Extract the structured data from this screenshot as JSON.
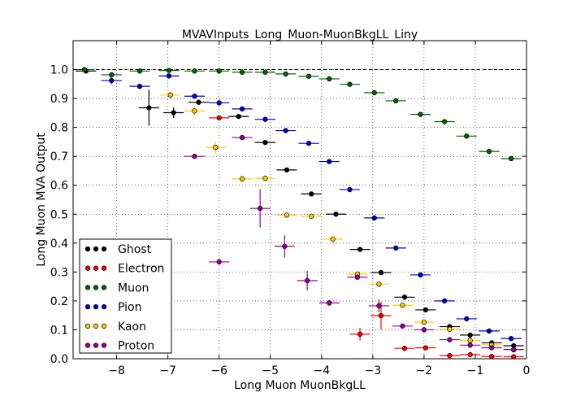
{
  "chart_data": {
    "type": "scatter",
    "title": "MVAVInputs_Long_Muon-MuonBkgLL_Liny",
    "xlabel": "Long Muon MuonBkgLL",
    "ylabel": "Long Muon MVA Output",
    "xlim": [
      -8.85,
      0
    ],
    "ylim": [
      0.0,
      1.1
    ],
    "xticks": [
      -8,
      -7,
      -6,
      -5,
      -4,
      -3,
      -2,
      -1,
      0
    ],
    "xtick_labels": [
      "−8",
      "−7",
      "−6",
      "−5",
      "−4",
      "−3",
      "−2",
      "−1",
      "0"
    ],
    "yticks": [
      0.0,
      0.1,
      0.2,
      0.3,
      0.4,
      0.5,
      0.6,
      0.7,
      0.8,
      0.9,
      1.0
    ],
    "ytick_labels": [
      "0.0",
      "0.1",
      "0.2",
      "0.3",
      "0.4",
      "0.5",
      "0.6",
      "0.7",
      "0.8",
      "0.9",
      "1.0"
    ],
    "grid": true,
    "reference_line": 1.0,
    "legend_position": "lower-left",
    "series": [
      {
        "name": "Ghost",
        "color": "#000000",
        "points": [
          {
            "x": -8.6,
            "y": 0.995,
            "xerr": 0.2,
            "yerr": 0.003
          },
          {
            "x": -7.37,
            "y": 0.868,
            "xerr": 0.2,
            "yerr": 0.062
          },
          {
            "x": -6.89,
            "y": 0.851,
            "xerr": 0.2,
            "yerr": 0.018
          },
          {
            "x": -6.4,
            "y": 0.887,
            "xerr": 0.2,
            "yerr": 0.008
          },
          {
            "x": -5.62,
            "y": 0.838,
            "xerr": 0.2,
            "yerr": 0.006
          },
          {
            "x": -5.1,
            "y": 0.748,
            "xerr": 0.2,
            "yerr": 0.005
          },
          {
            "x": -4.68,
            "y": 0.653,
            "xerr": 0.2,
            "yerr": 0.005
          },
          {
            "x": -4.2,
            "y": 0.57,
            "xerr": 0.2,
            "yerr": 0.004
          },
          {
            "x": -3.72,
            "y": 0.5,
            "xerr": 0.2,
            "yerr": 0.004
          },
          {
            "x": -3.25,
            "y": 0.378,
            "xerr": 0.2,
            "yerr": 0.004
          },
          {
            "x": -2.84,
            "y": 0.298,
            "xerr": 0.2,
            "yerr": 0.004
          },
          {
            "x": -2.38,
            "y": 0.213,
            "xerr": 0.2,
            "yerr": 0.004
          },
          {
            "x": -1.97,
            "y": 0.169,
            "xerr": 0.2,
            "yerr": 0.004
          },
          {
            "x": -1.5,
            "y": 0.111,
            "xerr": 0.2,
            "yerr": 0.004
          },
          {
            "x": -1.1,
            "y": 0.082,
            "xerr": 0.2,
            "yerr": 0.004
          },
          {
            "x": -0.68,
            "y": 0.055,
            "xerr": 0.2,
            "yerr": 0.004
          },
          {
            "x": -0.25,
            "y": 0.045,
            "xerr": 0.2,
            "yerr": 0.004
          }
        ]
      },
      {
        "name": "Electron",
        "color": "#ff0000",
        "points": [
          {
            "x": -6.0,
            "y": 0.833,
            "xerr": 0.2,
            "yerr": 0.005
          },
          {
            "x": -3.25,
            "y": 0.085,
            "xerr": 0.2,
            "yerr": 0.022
          },
          {
            "x": -2.84,
            "y": 0.149,
            "xerr": 0.2,
            "yerr": 0.048
          },
          {
            "x": -2.38,
            "y": 0.036,
            "xerr": 0.2,
            "yerr": 0.008
          },
          {
            "x": -1.97,
            "y": 0.038,
            "xerr": 0.2,
            "yerr": 0.006
          },
          {
            "x": -1.5,
            "y": 0.011,
            "xerr": 0.2,
            "yerr": 0.004
          },
          {
            "x": -1.1,
            "y": 0.014,
            "xerr": 0.2,
            "yerr": 0.004
          },
          {
            "x": -0.68,
            "y": 0.008,
            "xerr": 0.2,
            "yerr": 0.003
          },
          {
            "x": -0.25,
            "y": 0.007,
            "xerr": 0.2,
            "yerr": 0.003
          }
        ]
      },
      {
        "name": "Muon",
        "color": "#006400",
        "points": [
          {
            "x": -8.63,
            "y": 1.0,
            "xerr": 0.2,
            "yerr": 0.001
          },
          {
            "x": -8.1,
            "y": 0.982,
            "xerr": 0.2,
            "yerr": 0.002
          },
          {
            "x": -7.55,
            "y": 0.995,
            "xerr": 0.2,
            "yerr": 0.002
          },
          {
            "x": -6.98,
            "y": 0.997,
            "xerr": 0.2,
            "yerr": 0.002
          },
          {
            "x": -6.48,
            "y": 0.995,
            "xerr": 0.2,
            "yerr": 0.002
          },
          {
            "x": -6.0,
            "y": 0.995,
            "xerr": 0.2,
            "yerr": 0.002
          },
          {
            "x": -5.55,
            "y": 0.991,
            "xerr": 0.2,
            "yerr": 0.002
          },
          {
            "x": -5.1,
            "y": 0.991,
            "xerr": 0.2,
            "yerr": 0.002
          },
          {
            "x": -4.7,
            "y": 0.985,
            "xerr": 0.2,
            "yerr": 0.002
          },
          {
            "x": -4.25,
            "y": 0.977,
            "xerr": 0.2,
            "yerr": 0.002
          },
          {
            "x": -3.85,
            "y": 0.968,
            "xerr": 0.2,
            "yerr": 0.002
          },
          {
            "x": -3.45,
            "y": 0.949,
            "xerr": 0.2,
            "yerr": 0.002
          },
          {
            "x": -2.97,
            "y": 0.92,
            "xerr": 0.2,
            "yerr": 0.002
          },
          {
            "x": -2.55,
            "y": 0.892,
            "xerr": 0.2,
            "yerr": 0.002
          },
          {
            "x": -2.07,
            "y": 0.845,
            "xerr": 0.2,
            "yerr": 0.002
          },
          {
            "x": -1.6,
            "y": 0.82,
            "xerr": 0.2,
            "yerr": 0.002
          },
          {
            "x": -1.17,
            "y": 0.77,
            "xerr": 0.2,
            "yerr": 0.002
          },
          {
            "x": -0.73,
            "y": 0.717,
            "xerr": 0.2,
            "yerr": 0.002
          },
          {
            "x": -0.3,
            "y": 0.692,
            "xerr": 0.2,
            "yerr": 0.002
          }
        ]
      },
      {
        "name": "Pion",
        "color": "#0000cc",
        "points": [
          {
            "x": -8.1,
            "y": 0.962,
            "xerr": 0.2,
            "yerr": 0.012
          },
          {
            "x": -7.55,
            "y": 0.942,
            "xerr": 0.2,
            "yerr": 0.006
          },
          {
            "x": -6.98,
            "y": 0.978,
            "xerr": 0.2,
            "yerr": 0.004
          },
          {
            "x": -6.48,
            "y": 0.908,
            "xerr": 0.2,
            "yerr": 0.004
          },
          {
            "x": -6.0,
            "y": 0.885,
            "xerr": 0.2,
            "yerr": 0.004
          },
          {
            "x": -5.55,
            "y": 0.864,
            "xerr": 0.2,
            "yerr": 0.004
          },
          {
            "x": -5.1,
            "y": 0.828,
            "xerr": 0.2,
            "yerr": 0.004
          },
          {
            "x": -4.7,
            "y": 0.789,
            "xerr": 0.2,
            "yerr": 0.004
          },
          {
            "x": -4.25,
            "y": 0.745,
            "xerr": 0.2,
            "yerr": 0.004
          },
          {
            "x": -3.85,
            "y": 0.682,
            "xerr": 0.2,
            "yerr": 0.004
          },
          {
            "x": -3.45,
            "y": 0.585,
            "xerr": 0.2,
            "yerr": 0.004
          },
          {
            "x": -2.97,
            "y": 0.487,
            "xerr": 0.2,
            "yerr": 0.004
          },
          {
            "x": -2.55,
            "y": 0.383,
            "xerr": 0.2,
            "yerr": 0.004
          },
          {
            "x": -2.07,
            "y": 0.29,
            "xerr": 0.2,
            "yerr": 0.004
          },
          {
            "x": -1.6,
            "y": 0.2,
            "xerr": 0.2,
            "yerr": 0.004
          },
          {
            "x": -1.17,
            "y": 0.138,
            "xerr": 0.2,
            "yerr": 0.004
          },
          {
            "x": -0.73,
            "y": 0.096,
            "xerr": 0.2,
            "yerr": 0.004
          },
          {
            "x": -0.3,
            "y": 0.07,
            "xerr": 0.2,
            "yerr": 0.004
          }
        ]
      },
      {
        "name": "Kaon",
        "color": "#ffcc00",
        "points": [
          {
            "x": -6.95,
            "y": 0.912,
            "xerr": 0.2,
            "yerr": 0.012
          },
          {
            "x": -6.48,
            "y": 0.857,
            "xerr": 0.2,
            "yerr": 0.018
          },
          {
            "x": -6.07,
            "y": 0.731,
            "xerr": 0.2,
            "yerr": 0.02
          },
          {
            "x": -5.55,
            "y": 0.622,
            "xerr": 0.2,
            "yerr": 0.012
          },
          {
            "x": -5.1,
            "y": 0.624,
            "xerr": 0.2,
            "yerr": 0.01
          },
          {
            "x": -4.68,
            "y": 0.497,
            "xerr": 0.2,
            "yerr": 0.006
          },
          {
            "x": -4.2,
            "y": 0.493,
            "xerr": 0.2,
            "yerr": 0.005
          },
          {
            "x": -3.78,
            "y": 0.414,
            "xerr": 0.2,
            "yerr": 0.005
          },
          {
            "x": -3.3,
            "y": 0.293,
            "xerr": 0.2,
            "yerr": 0.005
          },
          {
            "x": -2.88,
            "y": 0.258,
            "xerr": 0.2,
            "yerr": 0.005
          },
          {
            "x": -2.42,
            "y": 0.185,
            "xerr": 0.2,
            "yerr": 0.005
          },
          {
            "x": -2.0,
            "y": 0.127,
            "xerr": 0.2,
            "yerr": 0.005
          },
          {
            "x": -1.5,
            "y": 0.102,
            "xerr": 0.2,
            "yerr": 0.005
          },
          {
            "x": -1.1,
            "y": 0.063,
            "xerr": 0.2,
            "yerr": 0.005
          },
          {
            "x": -0.68,
            "y": 0.048,
            "xerr": 0.2,
            "yerr": 0.004
          },
          {
            "x": -0.25,
            "y": 0.031,
            "xerr": 0.2,
            "yerr": 0.004
          }
        ]
      },
      {
        "name": "Proton",
        "color": "#990099",
        "points": [
          {
            "x": -6.48,
            "y": 0.7,
            "xerr": 0.2,
            "yerr": 0.006
          },
          {
            "x": -6.0,
            "y": 0.335,
            "xerr": 0.2,
            "yerr": 0.006
          },
          {
            "x": -5.55,
            "y": 0.765,
            "xerr": 0.2,
            "yerr": 0.006
          },
          {
            "x": -5.2,
            "y": 0.52,
            "xerr": 0.2,
            "yerr": 0.066
          },
          {
            "x": -4.72,
            "y": 0.389,
            "xerr": 0.2,
            "yerr": 0.038
          },
          {
            "x": -4.28,
            "y": 0.27,
            "xerr": 0.2,
            "yerr": 0.034
          },
          {
            "x": -3.85,
            "y": 0.193,
            "xerr": 0.2,
            "yerr": 0.01
          },
          {
            "x": -3.3,
            "y": 0.282,
            "xerr": 0.2,
            "yerr": 0.008
          },
          {
            "x": -2.88,
            "y": 0.183,
            "xerr": 0.2,
            "yerr": 0.022
          },
          {
            "x": -2.42,
            "y": 0.113,
            "xerr": 0.2,
            "yerr": 0.006
          },
          {
            "x": -2.0,
            "y": 0.1,
            "xerr": 0.2,
            "yerr": 0.006
          },
          {
            "x": -1.5,
            "y": 0.066,
            "xerr": 0.2,
            "yerr": 0.005
          },
          {
            "x": -1.1,
            "y": 0.047,
            "xerr": 0.2,
            "yerr": 0.005
          },
          {
            "x": -0.68,
            "y": 0.038,
            "xerr": 0.2,
            "yerr": 0.004
          },
          {
            "x": -0.25,
            "y": 0.032,
            "xerr": 0.2,
            "yerr": 0.004
          }
        ]
      }
    ]
  }
}
